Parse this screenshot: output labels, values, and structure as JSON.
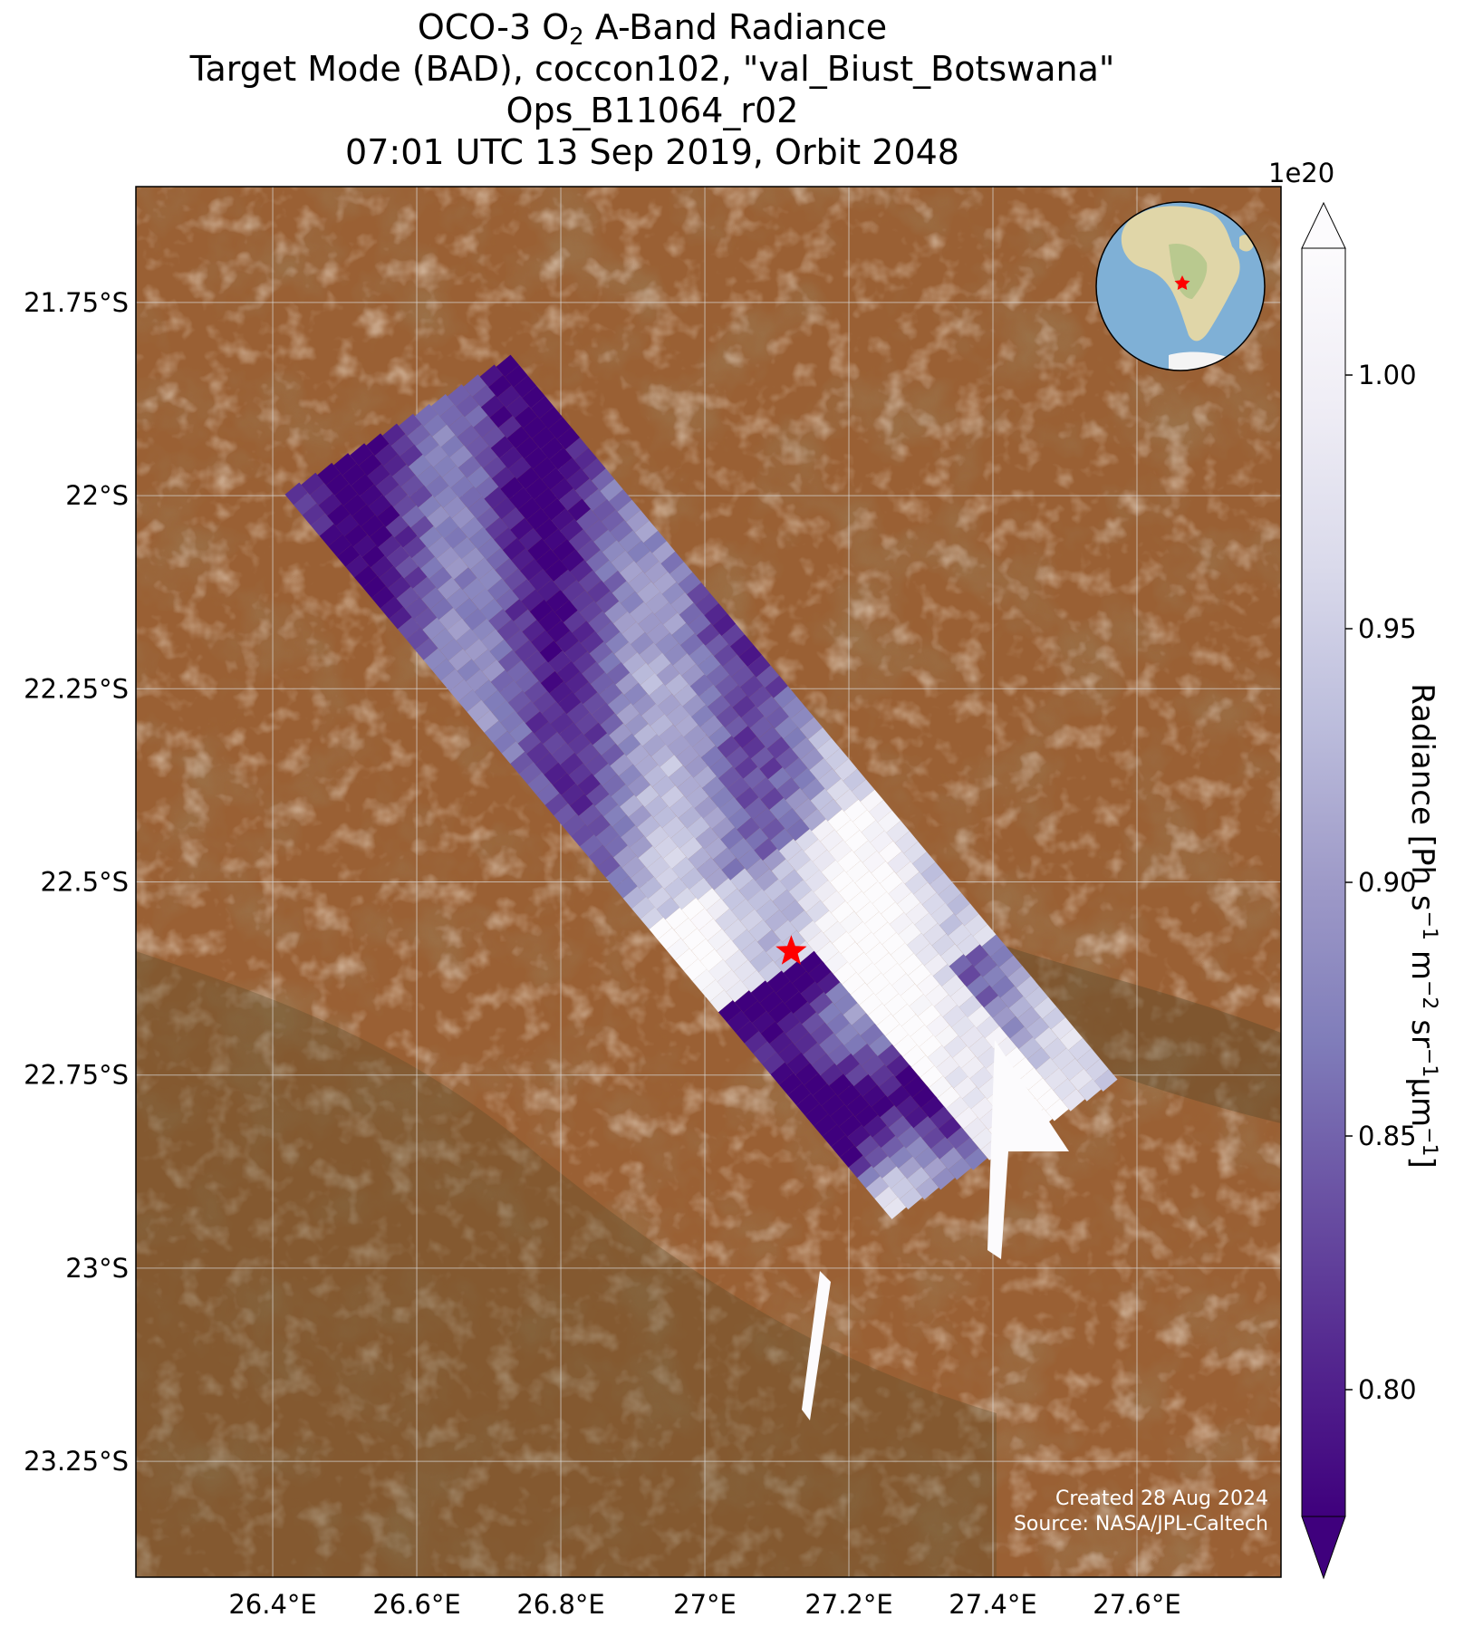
{
  "title": {
    "line1_pre": "OCO-3 O",
    "line1_sub": "2",
    "line1_post": " A-Band Radiance",
    "line2": "Target Mode (BAD), coccon102, \"val_Biust_Botswana\"",
    "line3": "Ops_B11064_r02",
    "line4": "07:01 UTC 13 Sep 2019, Orbit 2048"
  },
  "map": {
    "lon_ticks": [
      "26.4°E",
      "26.6°E",
      "26.8°E",
      "27°E",
      "27.2°E",
      "27.4°E",
      "27.6°E"
    ],
    "lon_values": [
      26.4,
      26.6,
      26.8,
      27.0,
      27.2,
      27.4,
      27.6
    ],
    "lat_ticks": [
      "21.75°S",
      "22°S",
      "22.25°S",
      "22.5°S",
      "22.75°S",
      "23°S",
      "23.25°S"
    ],
    "lat_values": [
      -21.75,
      -22.0,
      -22.25,
      -22.5,
      -22.75,
      -23.0,
      -23.25
    ],
    "lon_range": [
      26.21,
      27.8
    ],
    "lat_range": [
      -23.4,
      -21.6
    ],
    "target_lon": 27.12,
    "target_lat": -22.59,
    "target_color": "#ff0000",
    "inset": "globe-africa-inset"
  },
  "colorbar": {
    "exponent": "1e20",
    "ticks": [
      "0.80",
      "0.85",
      "0.90",
      "0.95",
      "1.00"
    ],
    "tick_values": [
      0.8,
      0.85,
      0.9,
      0.95,
      1.0
    ],
    "range": [
      0.775,
      1.025
    ],
    "label_pre": "Radiance [Ph s",
    "label_parts": [
      "−1",
      " m",
      "−2",
      " sr",
      "−1",
      "µm",
      "−1",
      "]"
    ],
    "cmap": [
      "#3f007d",
      "#54278f",
      "#6a51a3",
      "#807dba",
      "#9e9ac8",
      "#bcbddc",
      "#dadaeb",
      "#efedf5",
      "#fcfbfd"
    ],
    "extend": "both"
  },
  "credit": {
    "created": "Created 28 Aug 2024",
    "source": "Source: NASA/JPL-Caltech"
  }
}
